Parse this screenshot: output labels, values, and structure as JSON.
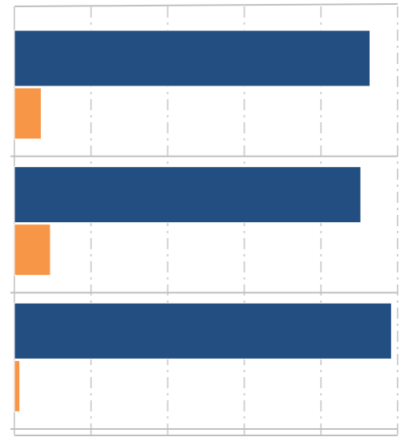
{
  "chart_data": {
    "type": "bar",
    "orientation": "horizontal",
    "categories": [
      null,
      null,
      null
    ],
    "series": [
      {
        "color": "#234e82",
        "values": [
          4.64,
          4.52,
          4.92
        ]
      },
      {
        "color": "#f79646",
        "values": [
          0.35,
          0.47,
          0.07
        ]
      }
    ],
    "xlim": [
      0,
      5
    ],
    "xticks": [
      0,
      1,
      2,
      3,
      4,
      5
    ],
    "grid": true
  }
}
